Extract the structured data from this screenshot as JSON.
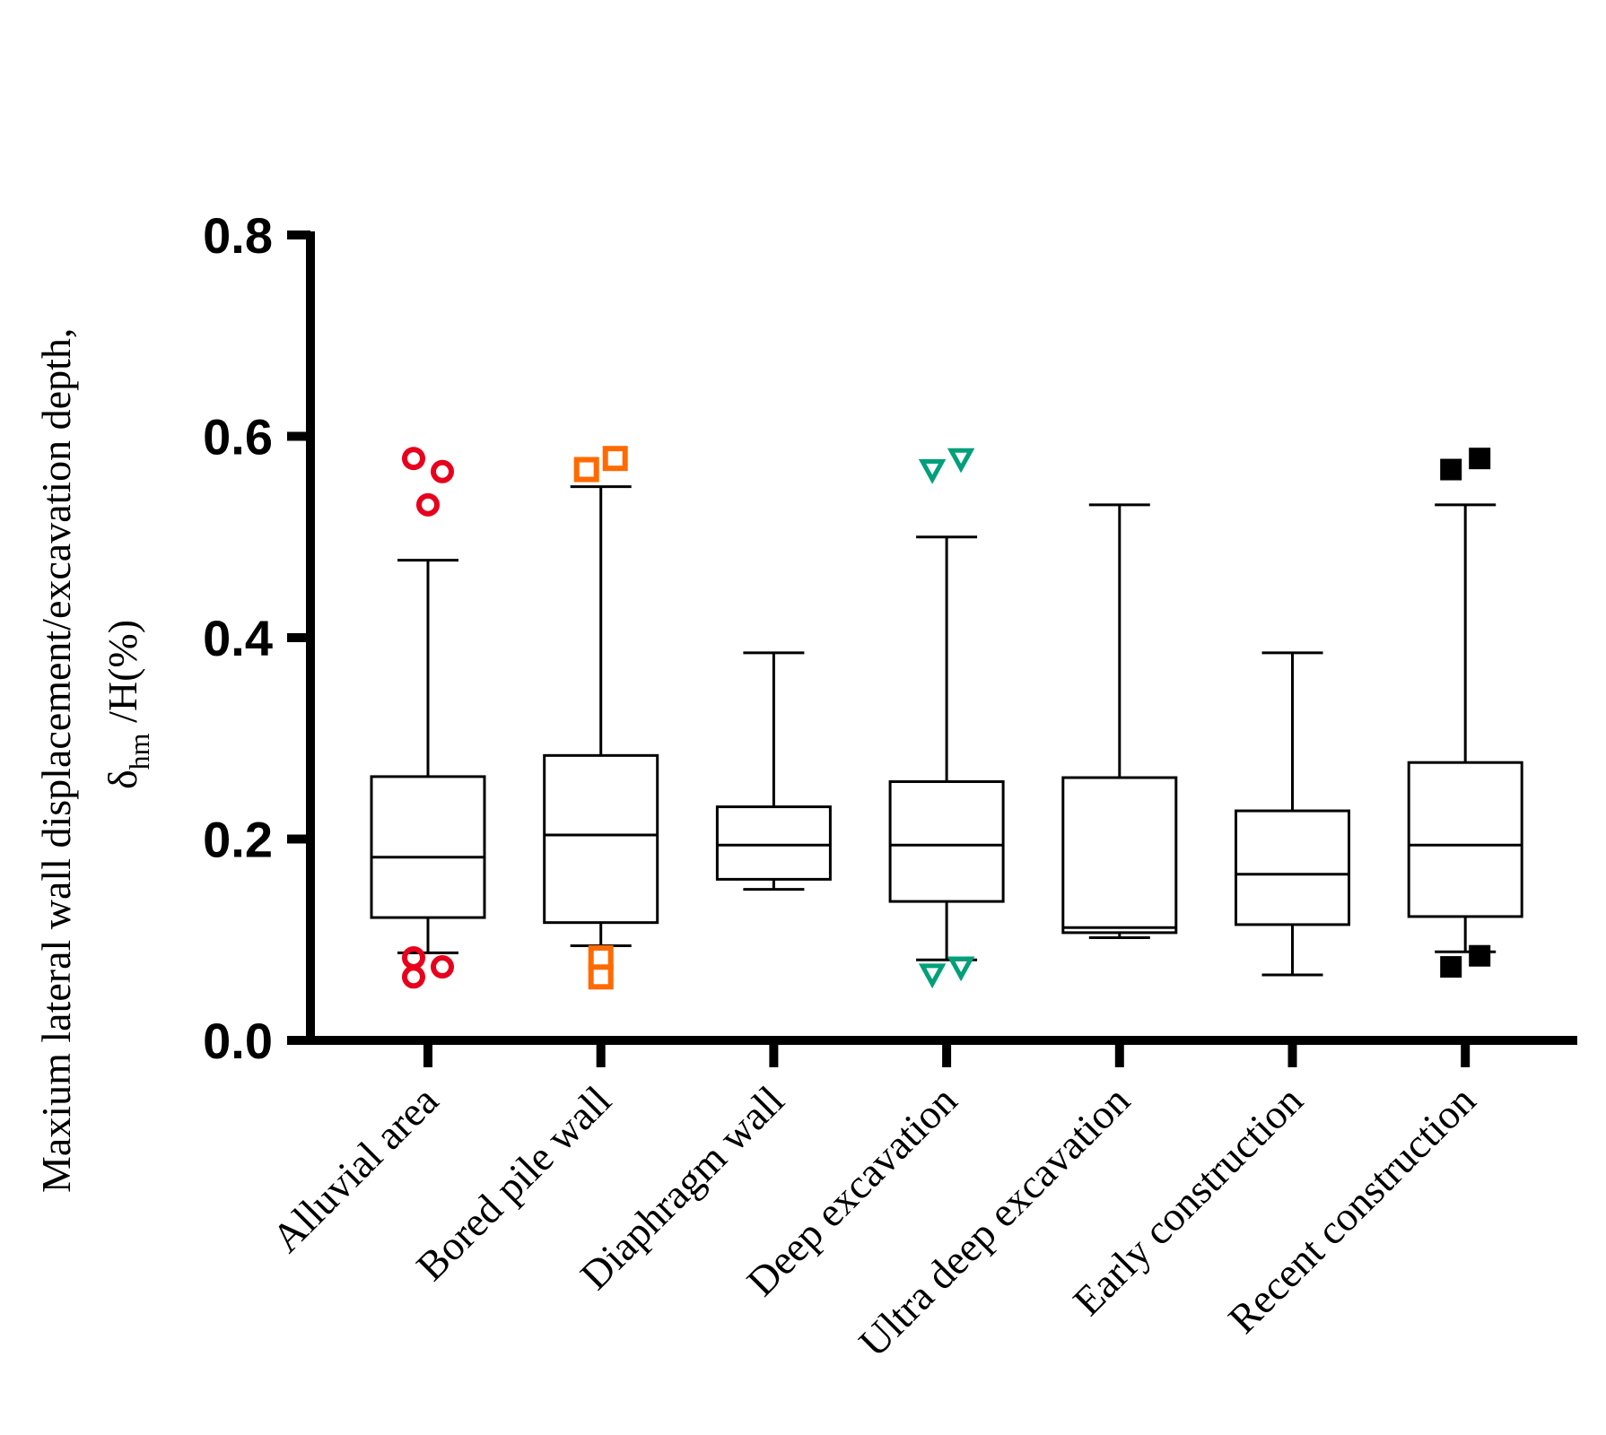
{
  "chart_data": {
    "type": "box",
    "ylabel_line1": "Maxium lateral wall displacement/excavation depth,",
    "ylabel_delta": "δ",
    "ylabel_sub": "hm",
    "ylabel_rest": " /H(%)",
    "ylim": [
      0,
      0.8
    ],
    "yticks": [
      0.0,
      0.2,
      0.4,
      0.6,
      0.8
    ],
    "ytick_labels": [
      "0.0",
      "0.2",
      "0.4",
      "0.6",
      "0.8"
    ],
    "grid": false,
    "categories": [
      {
        "label": "Alluvial area",
        "color": "#e8001c",
        "marker": "circle-open",
        "whisker_low": 0.087,
        "q1": 0.122,
        "median": 0.182,
        "q3": 0.262,
        "whisker_high": 0.477,
        "outliers": [
          [
            -0.4,
            0.578
          ],
          [
            0.4,
            0.565
          ],
          [
            0.0,
            0.532
          ],
          [
            -0.4,
            0.082
          ],
          [
            -0.4,
            0.063
          ],
          [
            0.4,
            0.073
          ]
        ]
      },
      {
        "label": "Bored pile wall",
        "color": "#ff6a00",
        "marker": "square-open",
        "whisker_low": 0.094,
        "q1": 0.117,
        "median": 0.204,
        "q3": 0.283,
        "whisker_high": 0.55,
        "outliers": [
          [
            -0.4,
            0.567
          ],
          [
            0.4,
            0.578
          ],
          [
            0.0,
            0.082
          ],
          [
            0.0,
            0.063
          ]
        ]
      },
      {
        "label": "Diaphragm wall",
        "color": "#000000",
        "marker": "none",
        "whisker_low": 0.15,
        "q1": 0.16,
        "median": 0.194,
        "q3": 0.232,
        "whisker_high": 0.385,
        "outliers": []
      },
      {
        "label": "Deep excavation",
        "color": "#00a07a",
        "marker": "triangle-down-open",
        "whisker_low": 0.08,
        "q1": 0.138,
        "median": 0.194,
        "q3": 0.257,
        "whisker_high": 0.5,
        "outliers": [
          [
            -0.4,
            0.567
          ],
          [
            0.4,
            0.578
          ],
          [
            -0.4,
            0.066
          ],
          [
            0.4,
            0.073
          ]
        ]
      },
      {
        "label": "Ultra deep excavation",
        "color": "#000000",
        "marker": "none",
        "whisker_low": 0.102,
        "q1": 0.107,
        "median": 0.112,
        "q3": 0.261,
        "whisker_high": 0.532,
        "outliers": []
      },
      {
        "label": "Early construction",
        "color": "#000000",
        "marker": "none",
        "whisker_low": 0.065,
        "q1": 0.115,
        "median": 0.165,
        "q3": 0.228,
        "whisker_high": 0.385,
        "outliers": []
      },
      {
        "label": "Recent construction",
        "color": "#000000",
        "marker": "square-filled",
        "whisker_low": 0.088,
        "q1": 0.123,
        "median": 0.194,
        "q3": 0.276,
        "whisker_high": 0.532,
        "outliers": [
          [
            -0.4,
            0.567
          ],
          [
            0.4,
            0.578
          ],
          [
            -0.4,
            0.073
          ],
          [
            0.4,
            0.084
          ]
        ]
      }
    ]
  }
}
